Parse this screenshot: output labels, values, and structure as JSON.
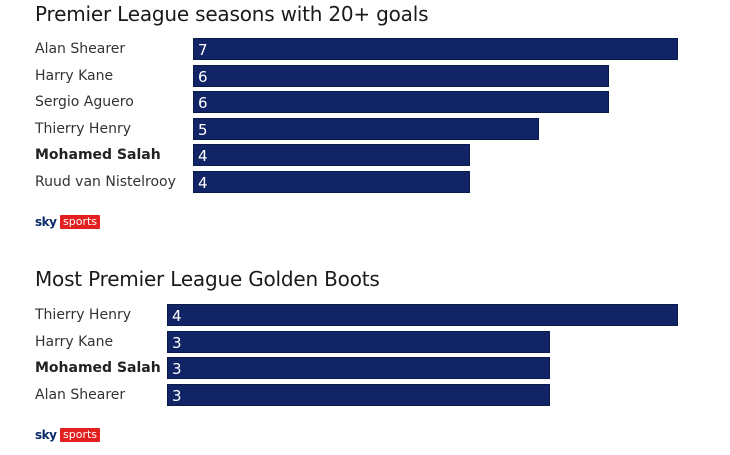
{
  "colors": {
    "bar": "#102466",
    "text": "#333333"
  },
  "chart_data": [
    {
      "type": "bar",
      "orientation": "horizontal",
      "title": "Premier League seasons with 20+ goals",
      "categories": [
        "Alan Shearer",
        "Harry Kane",
        "Sergio Aguero",
        "Thierry Henry",
        "Mohamed Salah",
        "Ruud van Nistelrooy"
      ],
      "values": [
        7,
        6,
        6,
        5,
        4,
        4
      ],
      "highlight": "Mohamed Salah",
      "xlim": [
        0,
        7
      ],
      "grid": false
    },
    {
      "type": "bar",
      "orientation": "horizontal",
      "title": "Most Premier League Golden Boots",
      "categories": [
        "Thierry Henry",
        "Harry Kane",
        "Mohamed Salah",
        "Alan Shearer"
      ],
      "values": [
        4,
        3,
        3,
        3
      ],
      "highlight": "Mohamed Salah",
      "xlim": [
        0,
        4
      ],
      "grid": false
    }
  ],
  "branding": {
    "sky": "sky",
    "sports": "sports"
  }
}
